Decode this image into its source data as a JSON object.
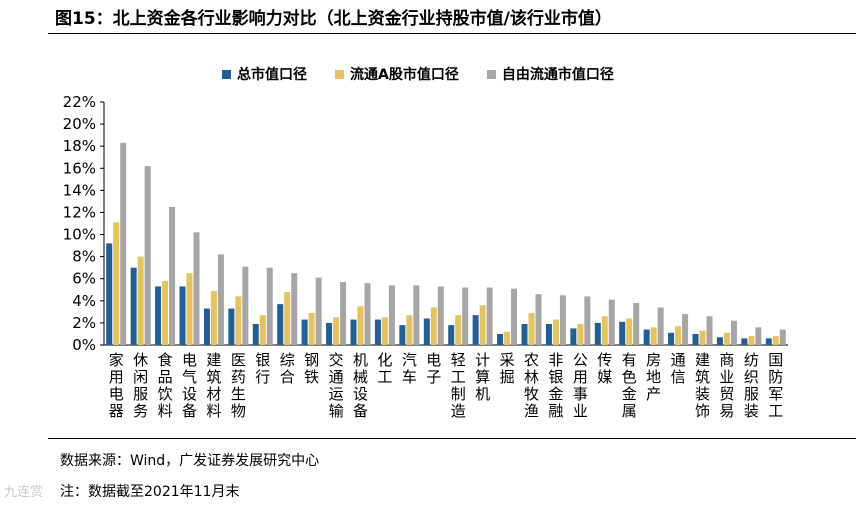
{
  "header": {
    "title": "图15：北上资金各行业影响力对比（北上资金行业持股市值/该行业市值）"
  },
  "footer": {
    "source": "数据来源：Wind，广发证券发展研究中心",
    "note": "注：数据截至2021年11月末",
    "watermark": "九连赏"
  },
  "colors": {
    "total": "#1f5f9a",
    "float_a": "#e6c35c",
    "free_float": "#a6a6a6"
  },
  "chart_data": {
    "type": "bar",
    "title": "",
    "xlabel": "",
    "ylabel": "",
    "ylim": [
      0,
      22
    ],
    "yticks": [
      "0%",
      "2%",
      "4%",
      "6%",
      "8%",
      "10%",
      "12%",
      "14%",
      "16%",
      "18%",
      "20%",
      "22%"
    ],
    "grid": false,
    "legend_position": "top",
    "categories": [
      "家用电器",
      "休闲服务",
      "食品饮料",
      "电气设备",
      "建筑材料",
      "医药生物",
      "银行",
      "综合",
      "钢铁",
      "交通运输",
      "机械设备",
      "化工",
      "汽车",
      "电子",
      "轻工制造",
      "计算机",
      "采掘",
      "农林牧渔",
      "非银金融",
      "公用事业",
      "传媒",
      "有色金属",
      "房地产",
      "通信",
      "建筑装饰",
      "商业贸易",
      "纺织服装",
      "国防军工"
    ],
    "series": [
      {
        "name": "总市值口径",
        "values": [
          9.2,
          7.0,
          5.3,
          5.3,
          3.3,
          3.3,
          1.9,
          3.7,
          2.3,
          2.0,
          2.3,
          2.3,
          1.8,
          2.4,
          1.8,
          2.7,
          1.0,
          1.9,
          1.9,
          1.5,
          2.0,
          2.1,
          1.4,
          1.1,
          1.0,
          0.7,
          0.6,
          0.6
        ]
      },
      {
        "name": "流通A股市值口径",
        "values": [
          11.1,
          8.0,
          5.8,
          6.5,
          4.9,
          4.4,
          2.7,
          4.8,
          2.9,
          2.5,
          3.5,
          2.5,
          2.7,
          3.4,
          2.7,
          3.6,
          1.2,
          2.9,
          2.3,
          1.9,
          2.6,
          2.4,
          1.6,
          1.7,
          1.3,
          1.1,
          0.8,
          0.8
        ]
      },
      {
        "name": "自由流通市值口径",
        "values": [
          18.3,
          16.2,
          12.5,
          10.2,
          8.2,
          7.1,
          7.0,
          6.5,
          6.1,
          5.7,
          5.6,
          5.4,
          5.4,
          5.3,
          5.2,
          5.2,
          5.1,
          4.6,
          4.5,
          4.4,
          4.1,
          3.8,
          3.4,
          2.8,
          2.6,
          2.2,
          1.6,
          1.4
        ]
      }
    ]
  }
}
